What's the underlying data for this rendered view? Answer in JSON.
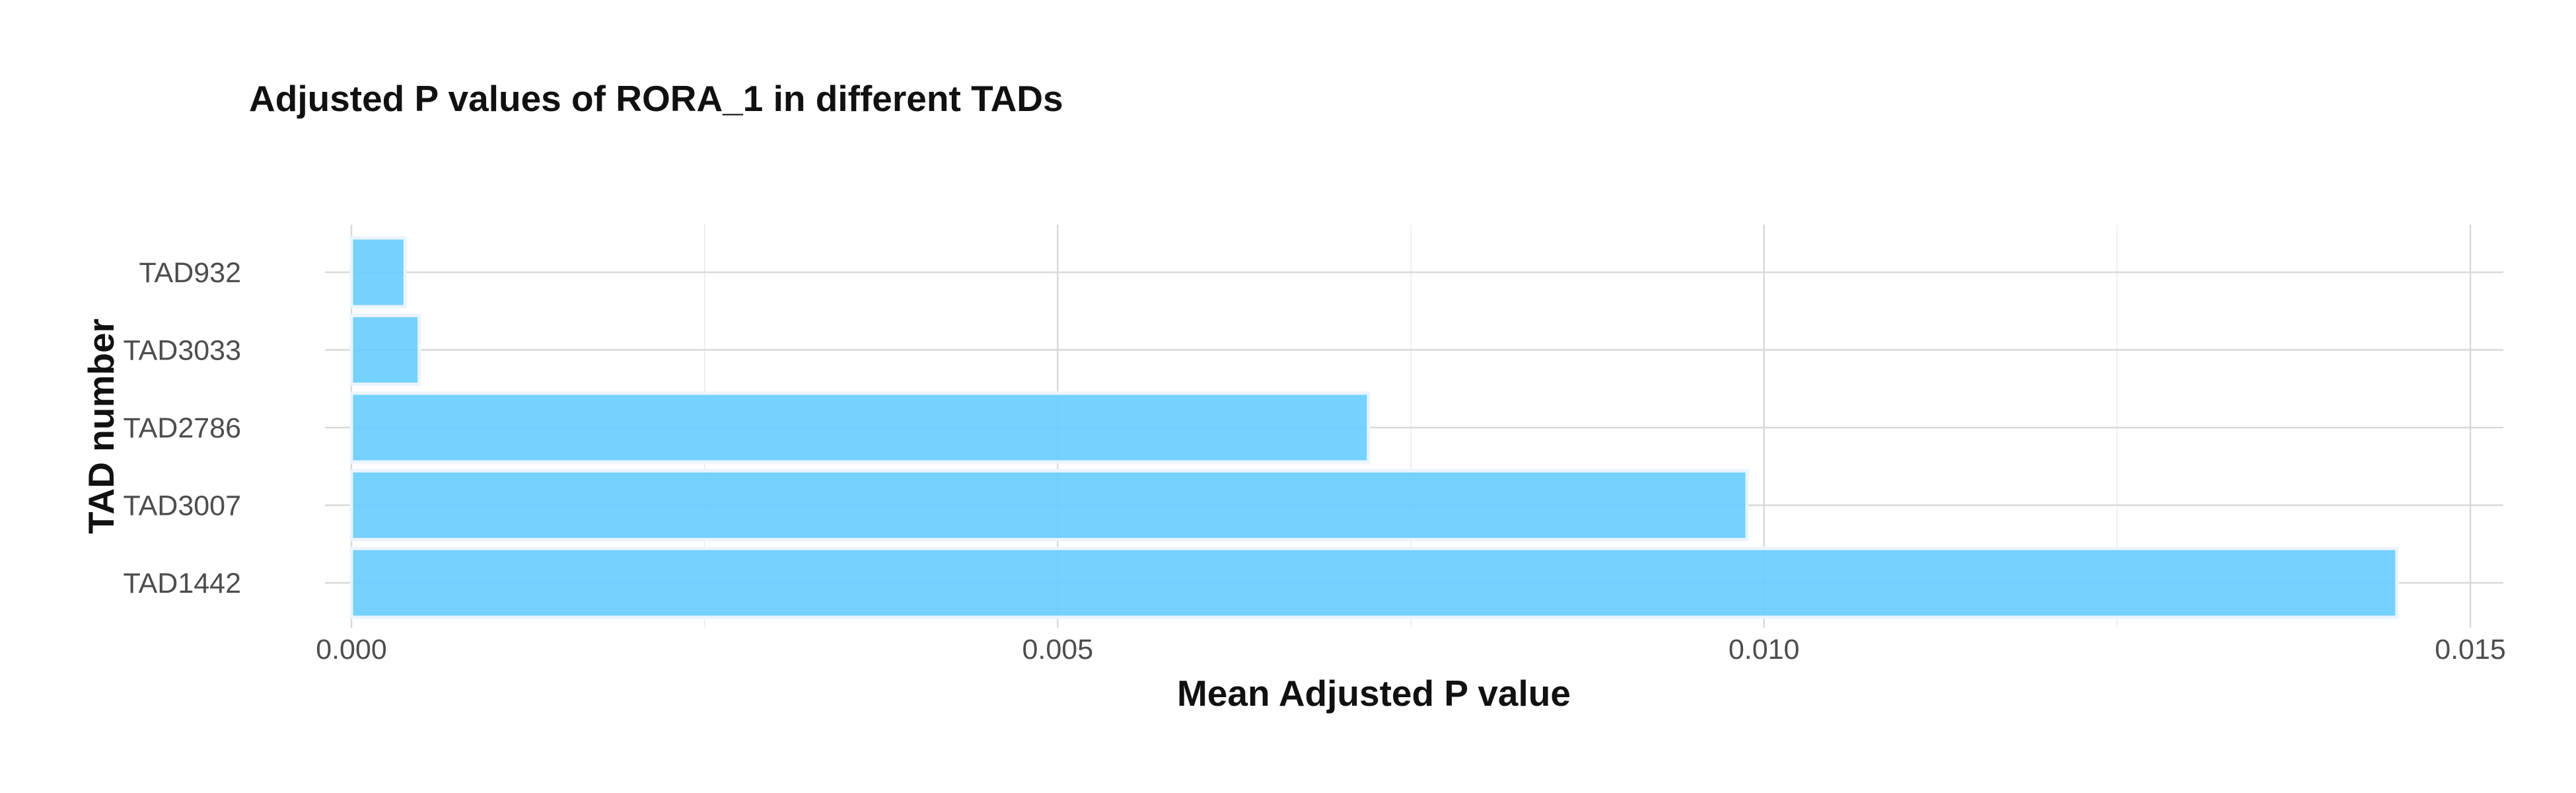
{
  "chart_data": {
    "type": "bar",
    "orientation": "horizontal",
    "title": "Adjusted P values of RORA_1 in different TADs",
    "xlabel": "Mean Adjusted P value",
    "ylabel": "TAD number",
    "categories": [
      "TAD932",
      "TAD3033",
      "TAD2786",
      "TAD3007",
      "TAD1442"
    ],
    "values": [
      0.00038,
      0.00048,
      0.0072,
      0.00988,
      0.01448
    ],
    "xlim": [
      0,
      0.015
    ],
    "x_ticks": [
      "0.000",
      "0.005",
      "0.010",
      "0.015"
    ],
    "grid": true,
    "legend": "none",
    "bar_color": "#66ccff"
  }
}
